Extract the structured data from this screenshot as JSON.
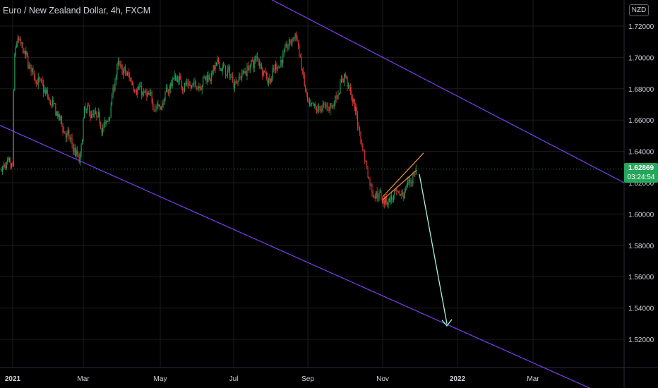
{
  "header": {
    "title": "Euro / New Zealand Dollar, 4h, FXCM",
    "currency": "NZD"
  },
  "current_price": {
    "value": "1.62869",
    "countdown": "03:24:54"
  },
  "colors": {
    "background": "#000000",
    "up": "#26a65b",
    "down": "#e53935",
    "channel": "#7b3ff2",
    "wedge": "#f59330",
    "arrow": "#a8f5d8",
    "text": "#d1d4dc",
    "grid": "#1c1c1c"
  },
  "chart_data": {
    "type": "candlestick",
    "symbol": "EURNZD",
    "interval": "4h",
    "y_range": [
      1.505,
      1.727
    ],
    "y_ticks": [
      "1.72000",
      "1.70000",
      "1.68000",
      "1.66000",
      "1.64000",
      "1.62000",
      "1.60000",
      "1.58000",
      "1.56000",
      "1.54000",
      "1.52000"
    ],
    "x_ticks": [
      "2021",
      "Mar",
      "May",
      "Jul",
      "Sep",
      "Nov",
      "2022",
      "Mar"
    ],
    "price_path": [
      [
        "2021",
        1.718
      ],
      [
        "Jan",
        1.695
      ],
      [
        "Feb",
        1.665
      ],
      [
        "late Feb",
        1.632
      ],
      [
        "Mar",
        1.668
      ],
      [
        "mid Mar",
        1.655
      ],
      [
        "Apr",
        1.695
      ],
      [
        "mid Apr",
        1.675
      ],
      [
        "May",
        1.668
      ],
      [
        "mid May",
        1.688
      ],
      [
        "Jun",
        1.68
      ],
      [
        "mid Jun",
        1.695
      ],
      [
        "Jul",
        1.685
      ],
      [
        "mid Jul",
        1.7
      ],
      [
        "Aug",
        1.685
      ],
      [
        "late Aug",
        1.716
      ],
      [
        "Sep",
        1.665
      ],
      [
        "mid Sep",
        1.67
      ],
      [
        "late Sep",
        1.69
      ],
      [
        "Oct",
        1.66
      ],
      [
        "mid Oct",
        1.615
      ],
      [
        "Nov",
        1.61
      ],
      [
        "mid Nov",
        1.61
      ],
      [
        "late Nov",
        1.629
      ]
    ],
    "drawings": [
      {
        "type": "trendline",
        "name": "channel-upper",
        "from": [
          "Aug",
          1.738
        ],
        "to": [
          "2022 Apr",
          1.62
        ]
      },
      {
        "type": "trendline",
        "name": "channel-lower",
        "from": [
          "2021",
          1.653
        ],
        "to": [
          "2022 Mar",
          1.505
        ]
      },
      {
        "type": "wedge",
        "name": "rising-wedge",
        "lines": [
          [
            [
              "Nov",
              1.609
            ],
            [
              "late Nov",
              1.628
            ]
          ],
          [
            [
              "Nov",
              1.611
            ],
            [
              "Dec",
              1.639
            ]
          ]
        ]
      },
      {
        "type": "arrow",
        "name": "projection-arrow",
        "from": [
          "Dec",
          1.629
        ],
        "to": [
          "Dec",
          1.53
        ]
      }
    ]
  }
}
